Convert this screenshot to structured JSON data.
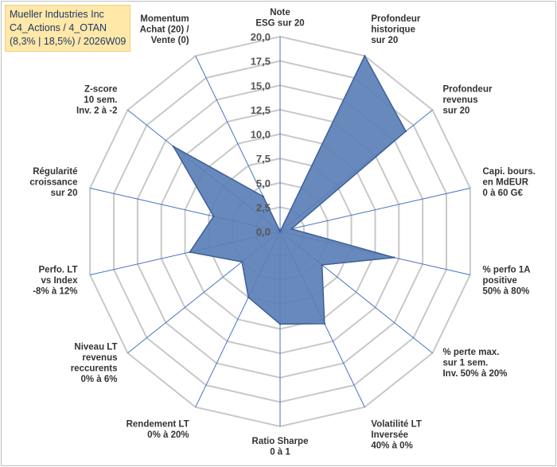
{
  "header": {
    "line1": "Mueller Industries Inc",
    "line2": "C4_Actions / 4_OTAN",
    "line3": "(8,3% | 18,5%) / 2026W09"
  },
  "colors": {
    "grid": "#c8c8c8",
    "spoke": "#4472c4",
    "fill": "#5b7fb5",
    "stroke": "#3e5f99"
  },
  "chart_data": {
    "type": "radar",
    "rmin": 0,
    "rmax": 20,
    "tick_step": 2.5,
    "tick_labels": [
      "0,0",
      "2,5",
      "5,0",
      "7,5",
      "10,0",
      "12,5",
      "15,0",
      "17,5",
      "20,0"
    ],
    "axes": [
      {
        "label": [
          "Note",
          "ESG sur 20"
        ],
        "value": 0
      },
      {
        "label": [
          "Profondeur",
          "historique",
          "sur 20"
        ],
        "value": 20
      },
      {
        "label": [
          "Profondeur",
          "revenus",
          "sur 20"
        ],
        "value": 16.5
      },
      {
        "label": [
          "Capi. bours.",
          "en MdEUR",
          "0 à 60 G€"
        ],
        "value": 1.2
      },
      {
        "label": [
          "% perfo 1A",
          "positive",
          "50% à 80%"
        ],
        "value": 12
      },
      {
        "label": [
          "% perte max.",
          "sur 1 sem.",
          "Inv. 50% à 20%"
        ],
        "value": 5.5
      },
      {
        "label": [
          "Volatilité LT",
          "Inversée",
          "40% à 0%"
        ],
        "value": 10.5
      },
      {
        "label": [
          "Ratio Sharpe",
          "0 à 1"
        ],
        "value": 9.5
      },
      {
        "label": [
          "Rendement LT",
          "0% à 20%"
        ],
        "value": 7.5
      },
      {
        "label": [
          "Niveau LT",
          "revenus",
          "reccurents",
          "0% à 6%"
        ],
        "value": 5
      },
      {
        "label": [
          "Perfo. LT",
          "vs Index",
          "-8% à 12%"
        ],
        "value": 9.5
      },
      {
        "label": [
          "Régularité",
          "croissance",
          "sur 20"
        ],
        "value": 7
      },
      {
        "label": [
          "Z-score",
          "10 sem.",
          "Inv. 2 à -2"
        ],
        "value": 14
      },
      {
        "label": [
          "Momentum",
          "Achat (20) /",
          "Vente (0)"
        ],
        "value": 4
      }
    ]
  }
}
